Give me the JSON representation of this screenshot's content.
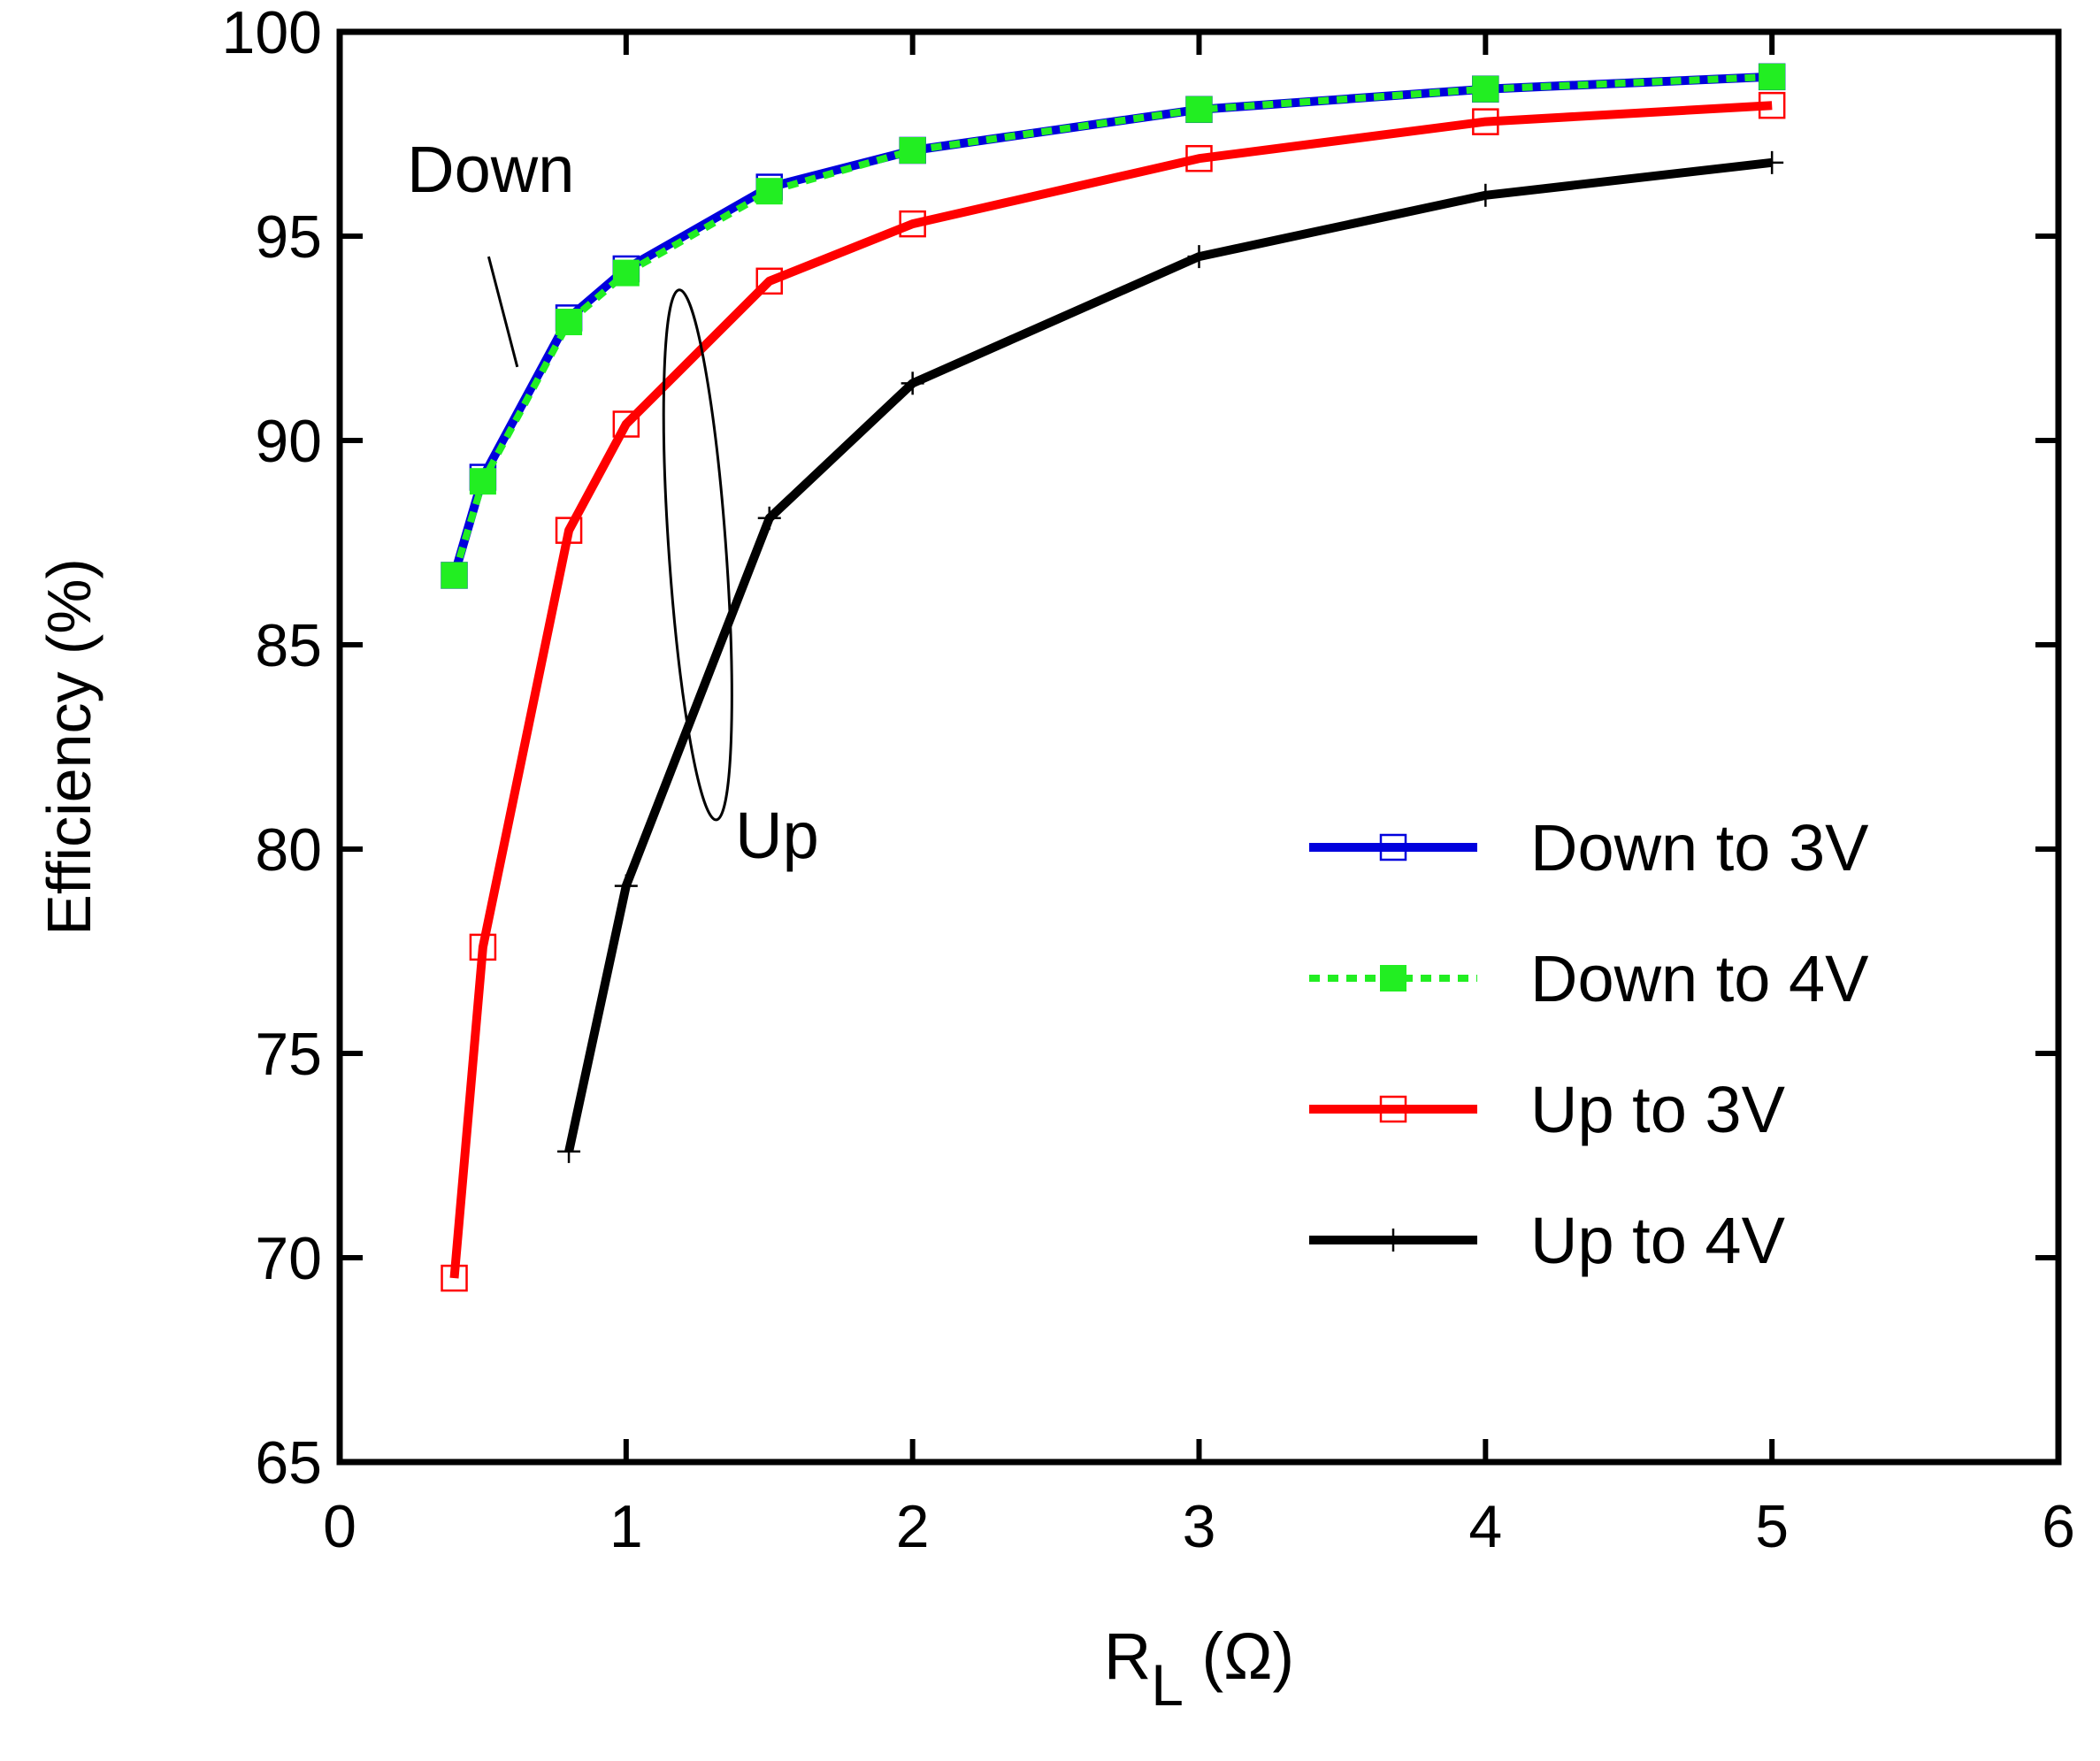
{
  "chart_data": {
    "type": "line",
    "title": "",
    "xlabel_main": "R",
    "xlabel_sub": "L",
    "xlabel_unit": "(Ω)",
    "ylabel": "Efficiency  (%)",
    "xlim": [
      0,
      6
    ],
    "ylim": [
      65,
      100
    ],
    "xticks": [
      0,
      1,
      2,
      3,
      4,
      5,
      6
    ],
    "yticks": [
      65,
      70,
      75,
      80,
      85,
      90,
      95,
      100
    ],
    "grid": false,
    "legend_position": "lower-right",
    "series": [
      {
        "name": "Down to 3V",
        "color": "#0000dd",
        "line_style": "solid",
        "marker": "open-square",
        "x": [
          0.4,
          0.5,
          0.8,
          1.0,
          1.5,
          2.0,
          3.0,
          4.0,
          5.0
        ],
        "y": [
          86.7,
          89.1,
          93.0,
          94.2,
          96.2,
          97.1,
          98.1,
          98.6,
          98.9
        ]
      },
      {
        "name": "Down to 4V",
        "color": "#22ee22",
        "line_style": "dotted",
        "marker": "filled-square",
        "x": [
          0.4,
          0.5,
          0.8,
          1.0,
          1.5,
          2.0,
          3.0,
          4.0,
          5.0
        ],
        "y": [
          86.7,
          89.0,
          92.9,
          94.1,
          96.1,
          97.1,
          98.1,
          98.6,
          98.9
        ]
      },
      {
        "name": "Up to 3V",
        "color": "#ff0000",
        "line_style": "solid",
        "marker": "open-square",
        "x": [
          0.4,
          0.5,
          0.8,
          1.0,
          1.5,
          2.0,
          3.0,
          4.0,
          5.0
        ],
        "y": [
          69.5,
          77.6,
          87.8,
          90.4,
          93.9,
          95.3,
          96.9,
          97.8,
          98.2
        ]
      },
      {
        "name": "Up to 4V",
        "color": "#000000",
        "line_style": "solid",
        "marker": "plus",
        "x": [
          0.8,
          1.0,
          1.5,
          2.0,
          3.0,
          4.0,
          5.0
        ],
        "y": [
          72.6,
          79.1,
          88.1,
          91.4,
          94.5,
          96.0,
          96.8
        ]
      }
    ],
    "annotations": [
      {
        "label": "Down",
        "text_at": [
          0.62,
          96.6
        ],
        "leader_from": [
          0.52,
          94.5
        ],
        "leader_to": [
          0.62,
          91.8
        ]
      },
      {
        "label": "Up",
        "text_at": [
          1.35,
          80.3
        ],
        "ellipse_center": [
          1.25,
          87.2
        ],
        "ellipse_radius_data": [
          0.1,
          6.5
        ]
      }
    ]
  }
}
